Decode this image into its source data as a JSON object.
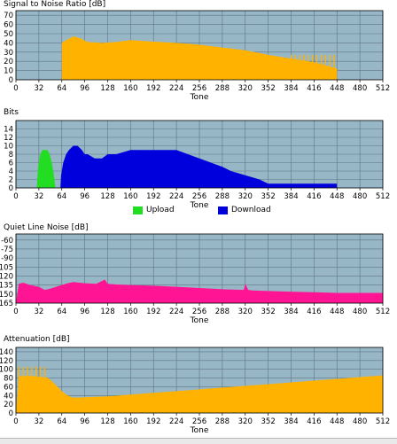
{
  "colors": {
    "plot_bg": "#97b6c6",
    "grid": "#5f7684",
    "snr": "#ffb300",
    "upload": "#22dd22",
    "download": "#0000dd",
    "noise": "#ff1493",
    "attenuation": "#ffb300"
  },
  "legend": {
    "upload_label": "Upload",
    "download_label": "Download"
  },
  "chart_data": [
    {
      "id": "snr",
      "type": "area",
      "title": "Signal to Noise Ratio [dB]",
      "xlabel": "Tone",
      "ylabel": "",
      "xlim": [
        0,
        512
      ],
      "ylim": [
        0,
        75
      ],
      "xticks": [
        0,
        32,
        64,
        96,
        128,
        160,
        192,
        224,
        256,
        288,
        320,
        352,
        384,
        416,
        448,
        480,
        512
      ],
      "yticks": [
        0,
        10,
        20,
        30,
        40,
        50,
        60,
        70
      ],
      "ytick_labels": [
        "0",
        "10",
        "20",
        "30",
        "40",
        "50",
        "60",
        "70"
      ],
      "grid": true,
      "series": [
        {
          "color_key": "snr",
          "x": [
            64,
            64,
            70,
            80,
            90,
            100,
            120,
            140,
            160,
            180,
            200,
            224,
            256,
            288,
            320,
            352,
            384,
            400,
            416,
            440,
            448,
            448
          ],
          "y": [
            0,
            40,
            43,
            47,
            45,
            41,
            40,
            41,
            43,
            42,
            41,
            40,
            38,
            35,
            32,
            27,
            23,
            21,
            19,
            14,
            12,
            0
          ]
        }
      ],
      "spikes": {
        "color_key": "snr",
        "x": [
          384,
          390,
          396,
          402,
          408,
          414,
          420,
          426,
          432,
          438,
          444
        ],
        "top": 27
      }
    },
    {
      "id": "bits",
      "type": "area",
      "title": "Bits",
      "xlabel": "Tone",
      "ylabel": "",
      "xlim": [
        0,
        512
      ],
      "ylim": [
        0,
        16
      ],
      "xticks": [
        0,
        32,
        64,
        96,
        128,
        160,
        192,
        224,
        256,
        288,
        320,
        352,
        384,
        416,
        448,
        480,
        512
      ],
      "yticks": [
        0,
        2,
        4,
        6,
        8,
        10,
        12,
        14
      ],
      "ytick_labels": [
        "0",
        "2",
        "4",
        "6",
        "8",
        "10",
        "12",
        "14"
      ],
      "grid": true,
      "series": [
        {
          "name": "Upload",
          "color_key": "upload",
          "x": [
            29,
            31,
            34,
            37,
            40,
            44,
            47,
            50,
            53,
            55
          ],
          "y": [
            0,
            5,
            8,
            9,
            9,
            9,
            8,
            6,
            3,
            0
          ]
        },
        {
          "name": "Download",
          "color_key": "download",
          "x": [
            62,
            63,
            66,
            70,
            74,
            80,
            86,
            92,
            96,
            100,
            110,
            120,
            128,
            140,
            160,
            192,
            224,
            240,
            256,
            272,
            288,
            300,
            320,
            340,
            352,
            384,
            416,
            448,
            448
          ],
          "y": [
            0,
            3,
            6,
            8,
            9,
            10,
            10,
            9,
            8,
            8,
            7,
            7,
            8,
            8,
            9,
            9,
            9,
            8,
            7,
            6,
            5,
            4,
            3,
            2,
            1,
            1,
            1,
            1,
            0
          ]
        }
      ]
    },
    {
      "id": "noise",
      "type": "area",
      "title": "Quiet Line Noise [dB]",
      "xlabel": "Tone",
      "ylabel": "",
      "xlim": [
        0,
        512
      ],
      "ylim": [
        -165,
        -50
      ],
      "xticks": [
        0,
        32,
        64,
        96,
        128,
        160,
        192,
        224,
        256,
        288,
        320,
        352,
        384,
        416,
        448,
        480,
        512
      ],
      "yticks": [
        -60,
        -75,
        -90,
        -105,
        -120,
        -135,
        -150,
        -165
      ],
      "ytick_labels": [
        "-60",
        "-75",
        "-90",
        "-105",
        "-120",
        "-135",
        "-150",
        "-165"
      ],
      "grid": true,
      "series": [
        {
          "color_key": "noise",
          "x": [
            0,
            4,
            10,
            20,
            32,
            40,
            48,
            56,
            64,
            72,
            80,
            96,
            112,
            124,
            128,
            140,
            160,
            192,
            224,
            256,
            288,
            318,
            320,
            324,
            330,
            352,
            384,
            416,
            448,
            480,
            512
          ],
          "y": [
            -165,
            -133,
            -131,
            -135,
            -138,
            -143,
            -141,
            -138,
            -135,
            -132,
            -130,
            -132,
            -133,
            -126,
            -133,
            -134,
            -135,
            -136,
            -138,
            -140,
            -142,
            -143,
            -133,
            -143,
            -144,
            -145,
            -146,
            -147,
            -148,
            -148,
            -148
          ]
        }
      ]
    },
    {
      "id": "attenuation",
      "type": "area",
      "title": "Attenuation [dB]",
      "xlabel": "Tone",
      "ylabel": "",
      "xlim": [
        0,
        512
      ],
      "ylim": [
        0,
        150
      ],
      "xticks": [
        0,
        32,
        64,
        96,
        128,
        160,
        192,
        224,
        256,
        288,
        320,
        352,
        384,
        416,
        448,
        480,
        512
      ],
      "yticks": [
        0,
        20,
        40,
        60,
        80,
        100,
        120,
        140
      ],
      "ytick_labels": [
        "0",
        "20",
        "40",
        "60",
        "80",
        "100",
        "120",
        "140"
      ],
      "grid": true,
      "series": [
        {
          "color_key": "attenuation",
          "x": [
            0,
            4,
            20,
            32,
            45,
            55,
            64,
            72,
            80,
            96,
            128,
            160,
            192,
            224,
            256,
            288,
            320,
            352,
            384,
            416,
            448,
            480,
            512
          ],
          "y": [
            0,
            84,
            85,
            83,
            80,
            65,
            50,
            40,
            35,
            36,
            38,
            42,
            46,
            50,
            54,
            58,
            62,
            66,
            70,
            74,
            78,
            82,
            86
          ]
        }
      ],
      "spikes": {
        "color_key": "attenuation",
        "x": [
          4,
          10,
          16,
          22,
          28,
          34,
          40
        ],
        "top": 106
      }
    }
  ]
}
